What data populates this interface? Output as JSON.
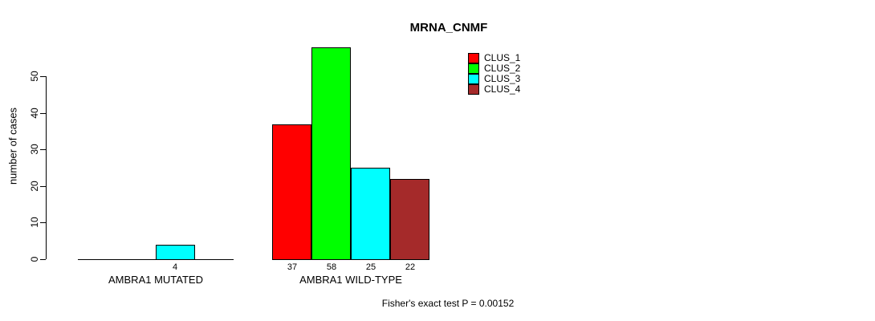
{
  "chart_data": {
    "type": "bar",
    "title": "MRNA_CNMF",
    "ylabel": "number of cases",
    "xlabel": "",
    "yticks": [
      0,
      10,
      20,
      30,
      40,
      50
    ],
    "ylim": [
      0,
      58
    ],
    "grid": false,
    "legend_position": "top-right",
    "series": [
      {
        "name": "CLUS_1",
        "color": "#FF0000"
      },
      {
        "name": "CLUS_2",
        "color": "#00FF00"
      },
      {
        "name": "CLUS_3",
        "color": "#00FFFF"
      },
      {
        "name": "CLUS_4",
        "color": "#A52A2A"
      }
    ],
    "groups": [
      {
        "label": "AMBRA1 MUTATED",
        "values": [
          0,
          0,
          4,
          0
        ]
      },
      {
        "label": "AMBRA1 WILD-TYPE",
        "values": [
          37,
          58,
          25,
          22
        ]
      }
    ],
    "bar_value_labels": [
      "4",
      "37",
      "58",
      "25",
      "22"
    ],
    "annotation": "Fisher's exact test P = 0.00152"
  },
  "colors": {
    "background": "#FFFFFF",
    "axis": "#000000",
    "text": "#000000"
  }
}
